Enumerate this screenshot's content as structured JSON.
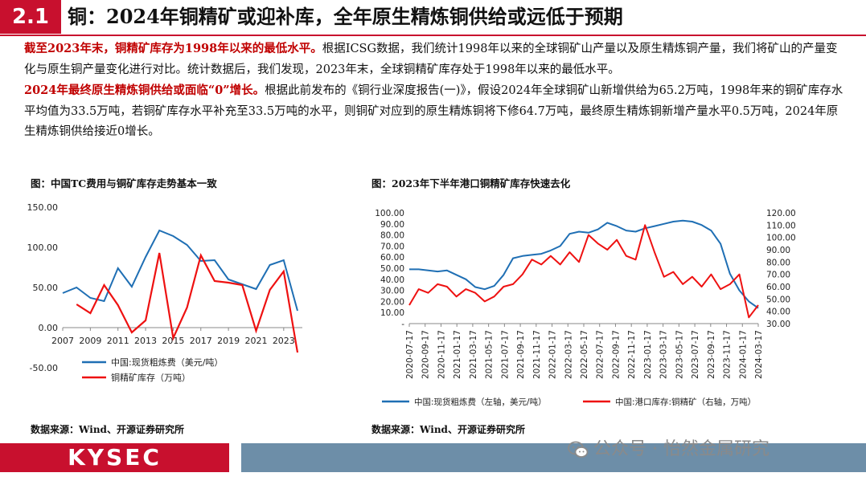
{
  "header": {
    "number": "2.1",
    "title": "铜：2024年铜精矿或迎补库，全年原生精炼铜供给或远低于预期"
  },
  "paragraphs": [
    {
      "highlight": "截至2023年末，铜精矿库存为1998年以来的最低水平。",
      "text": "根据ICSG数据，我们统计1998年以来的全球铜矿山产量以及原生精炼铜产量，我们将矿山的产量变化与原生铜产量变化进行对比。统计数据后，我们发现，2023年末，全球铜精矿库存处于1998年以来的最低水平。"
    },
    {
      "highlight": "2024年最终原生精炼铜供给或面临“0”增长。",
      "text": "根据此前发布的《铜行业深度报告(一)》，假设2024年全球铜矿山新增供给为65.2万吨，1998年来的铜矿库存水平均值为33.5万吨，若铜矿库存水平补充至33.5万吨的水平，则铜矿对应到的原生精炼铜将下修64.7万吨，最终原生精炼铜新增产量水平0.5万吨，2024年原生精炼铜供给接近0增长。"
    }
  ],
  "chart_data": [
    {
      "type": "line",
      "title": "图：中国TC费用与铜矿库存走势基本一致",
      "x": [
        2007,
        2008,
        2009,
        2010,
        2011,
        2012,
        2013,
        2014,
        2015,
        2016,
        2017,
        2018,
        2019,
        2020,
        2021,
        2022,
        2023,
        2024
      ],
      "xticks": [
        "2007",
        "2009",
        "2011",
        "2013",
        "2015",
        "2017",
        "2019",
        "2021",
        "2023"
      ],
      "ylim": [
        -50,
        150
      ],
      "yticks": [
        "150.00",
        "100.00",
        "50.00",
        "0.00",
        "-50.00"
      ],
      "series": [
        {
          "name": "中国:现货粗炼费（美元/吨）",
          "color": "#1f6fb4",
          "values": [
            43,
            50,
            37,
            33,
            74,
            51,
            88,
            121,
            114,
            103,
            83,
            84,
            60,
            54,
            48,
            78,
            84,
            21
          ]
        },
        {
          "name": "铜精矿库存（万吨）",
          "color": "#ee1111",
          "values": [
            null,
            29,
            18,
            53,
            28,
            -6,
            9,
            93,
            -13,
            25,
            90,
            58,
            56,
            53,
            -4,
            47,
            70,
            -31
          ]
        }
      ],
      "legend_position": "bottom",
      "source": "数据来源：Wind、开源证券研究所"
    },
    {
      "type": "line",
      "title": "图：2023年下半年港口铜精矿库存快速去化",
      "xticks": [
        "2020-07-17",
        "2020-09-17",
        "2020-11-17",
        "2021-01-17",
        "2021-03-17",
        "2021-05-17",
        "2021-07-17",
        "2021-09-17",
        "2021-11-17",
        "2022-01-17",
        "2022-03-17",
        "2022-05-17",
        "2022-07-17",
        "2022-09-17",
        "2022-11-17",
        "2023-01-17",
        "2023-03-17",
        "2023-05-17",
        "2023-07-17",
        "2023-09-17",
        "2023-11-17",
        "2024-01-17",
        "2024-03-17"
      ],
      "left_axis": {
        "ylim": [
          0,
          100
        ],
        "yticks": [
          "100.00",
          "90.00",
          "80.00",
          "70.00",
          "60.00",
          "50.00",
          "40.00",
          "30.00",
          "20.00",
          "10.00",
          "-"
        ]
      },
      "right_axis": {
        "ylim": [
          30,
          120
        ],
        "yticks": [
          "120.00",
          "110.00",
          "100.00",
          "90.00",
          "80.00",
          "70.00",
          "60.00",
          "50.00",
          "40.00",
          "30.00"
        ]
      },
      "series": [
        {
          "name": "中国:现货粗炼费（左轴，美元/吨）",
          "color": "#1f6fb4",
          "axis": "left",
          "values": [
            49,
            49,
            48,
            47,
            48,
            44,
            40,
            33,
            31,
            34,
            44,
            59,
            61,
            62,
            63,
            66,
            70,
            81,
            83,
            82,
            85,
            91,
            88,
            84,
            83,
            86,
            88,
            90,
            92,
            93,
            92,
            89,
            84,
            72,
            45,
            30,
            20,
            14
          ]
        },
        {
          "name": "中国:港口库存:铜精矿（右轴，万吨）",
          "color": "#ee1111",
          "axis": "right",
          "values": [
            45,
            58,
            55,
            62,
            60,
            52,
            58,
            55,
            48,
            52,
            60,
            62,
            70,
            82,
            78,
            85,
            78,
            88,
            80,
            102,
            95,
            90,
            98,
            85,
            82,
            110,
            88,
            68,
            72,
            62,
            68,
            60,
            70,
            58,
            62,
            70,
            35,
            45
          ]
        }
      ],
      "legend_position": "bottom",
      "source": "数据来源：Wind、开源证券研究所"
    }
  ],
  "footer": {
    "logo": "KYSEC",
    "watermark": "公众号 · 怡然金属研究"
  }
}
